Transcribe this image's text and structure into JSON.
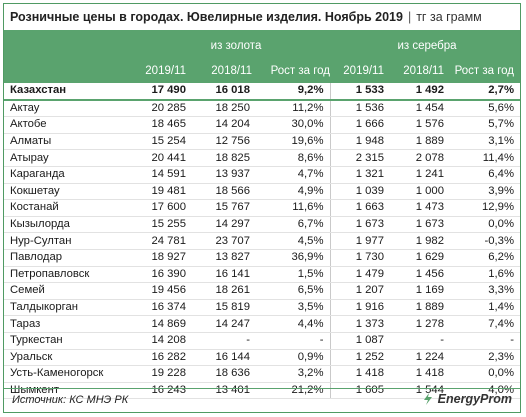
{
  "title": {
    "main": "Розничные цены в городах. Ювелирные изделия. Ноябрь 2019",
    "separator": "|",
    "unit": "тг за грамм"
  },
  "header": {
    "gold_group": "из золота",
    "silver_group": "из серебра",
    "columns": [
      "2019/11",
      "2018/11",
      "Рост за год",
      "2019/11",
      "2018/11",
      "Рост за год"
    ]
  },
  "rows": [
    {
      "city": "Казахстан",
      "g19": "17 490",
      "g18": "16 018",
      "gr": "9,2%",
      "s19": "1 533",
      "s18": "1 492",
      "sr": "2,7%"
    },
    {
      "city": "Актау",
      "g19": "20 285",
      "g18": "18 250",
      "gr": "11,2%",
      "s19": "1 536",
      "s18": "1 454",
      "sr": "5,6%"
    },
    {
      "city": "Актобе",
      "g19": "18 465",
      "g18": "14 204",
      "gr": "30,0%",
      "s19": "1 666",
      "s18": "1 576",
      "sr": "5,7%"
    },
    {
      "city": "Алматы",
      "g19": "15 254",
      "g18": "12 756",
      "gr": "19,6%",
      "s19": "1 948",
      "s18": "1 889",
      "sr": "3,1%"
    },
    {
      "city": "Атырау",
      "g19": "20 441",
      "g18": "18 825",
      "gr": "8,6%",
      "s19": "2 315",
      "s18": "2 078",
      "sr": "11,4%"
    },
    {
      "city": "Караганда",
      "g19": "14 591",
      "g18": "13 937",
      "gr": "4,7%",
      "s19": "1 321",
      "s18": "1 241",
      "sr": "6,4%"
    },
    {
      "city": "Кокшетау",
      "g19": "19 481",
      "g18": "18 566",
      "gr": "4,9%",
      "s19": "1 039",
      "s18": "1 000",
      "sr": "3,9%"
    },
    {
      "city": "Костанай",
      "g19": "17 600",
      "g18": "15 767",
      "gr": "11,6%",
      "s19": "1 663",
      "s18": "1 473",
      "sr": "12,9%"
    },
    {
      "city": "Кызылорда",
      "g19": "15 255",
      "g18": "14 297",
      "gr": "6,7%",
      "s19": "1 673",
      "s18": "1 673",
      "sr": "0,0%"
    },
    {
      "city": "Нур-Султан",
      "g19": "24 781",
      "g18": "23 707",
      "gr": "4,5%",
      "s19": "1 977",
      "s18": "1 982",
      "sr": "-0,3%"
    },
    {
      "city": "Павлодар",
      "g19": "18 927",
      "g18": "13 827",
      "gr": "36,9%",
      "s19": "1 730",
      "s18": "1 629",
      "sr": "6,2%"
    },
    {
      "city": "Петропавловск",
      "g19": "16 390",
      "g18": "16 141",
      "gr": "1,5%",
      "s19": "1 479",
      "s18": "1 456",
      "sr": "1,6%"
    },
    {
      "city": "Семей",
      "g19": "19 456",
      "g18": "18 261",
      "gr": "6,5%",
      "s19": "1 207",
      "s18": "1 169",
      "sr": "3,3%"
    },
    {
      "city": "Талдыкорган",
      "g19": "16 374",
      "g18": "15 819",
      "gr": "3,5%",
      "s19": "1 916",
      "s18": "1 889",
      "sr": "1,4%"
    },
    {
      "city": "Тараз",
      "g19": "14 869",
      "g18": "14 247",
      "gr": "4,4%",
      "s19": "1 373",
      "s18": "1 278",
      "sr": "7,4%"
    },
    {
      "city": "Туркестан",
      "g19": "14 208",
      "g18": "-",
      "gr": "-",
      "s19": "1 087",
      "s18": "-",
      "sr": "-"
    },
    {
      "city": "Уральск",
      "g19": "16 282",
      "g18": "16 144",
      "gr": "0,9%",
      "s19": "1 252",
      "s18": "1 224",
      "sr": "2,3%"
    },
    {
      "city": "Усть-Каменогорск",
      "g19": "19 228",
      "g18": "18 636",
      "gr": "3,2%",
      "s19": "1 418",
      "s18": "1 418",
      "sr": "0,0%"
    },
    {
      "city": "Шымкент",
      "g19": "16 243",
      "g18": "13 401",
      "gr": "21,2%",
      "s19": "1 605",
      "s18": "1 544",
      "sr": "4,0%"
    }
  ],
  "footer": {
    "source": "Источник: КС МНЭ РК",
    "brand": "EnergyProm",
    "brand_icon": "energyprom-logo-icon",
    "accent_color": "#5aa36e"
  }
}
